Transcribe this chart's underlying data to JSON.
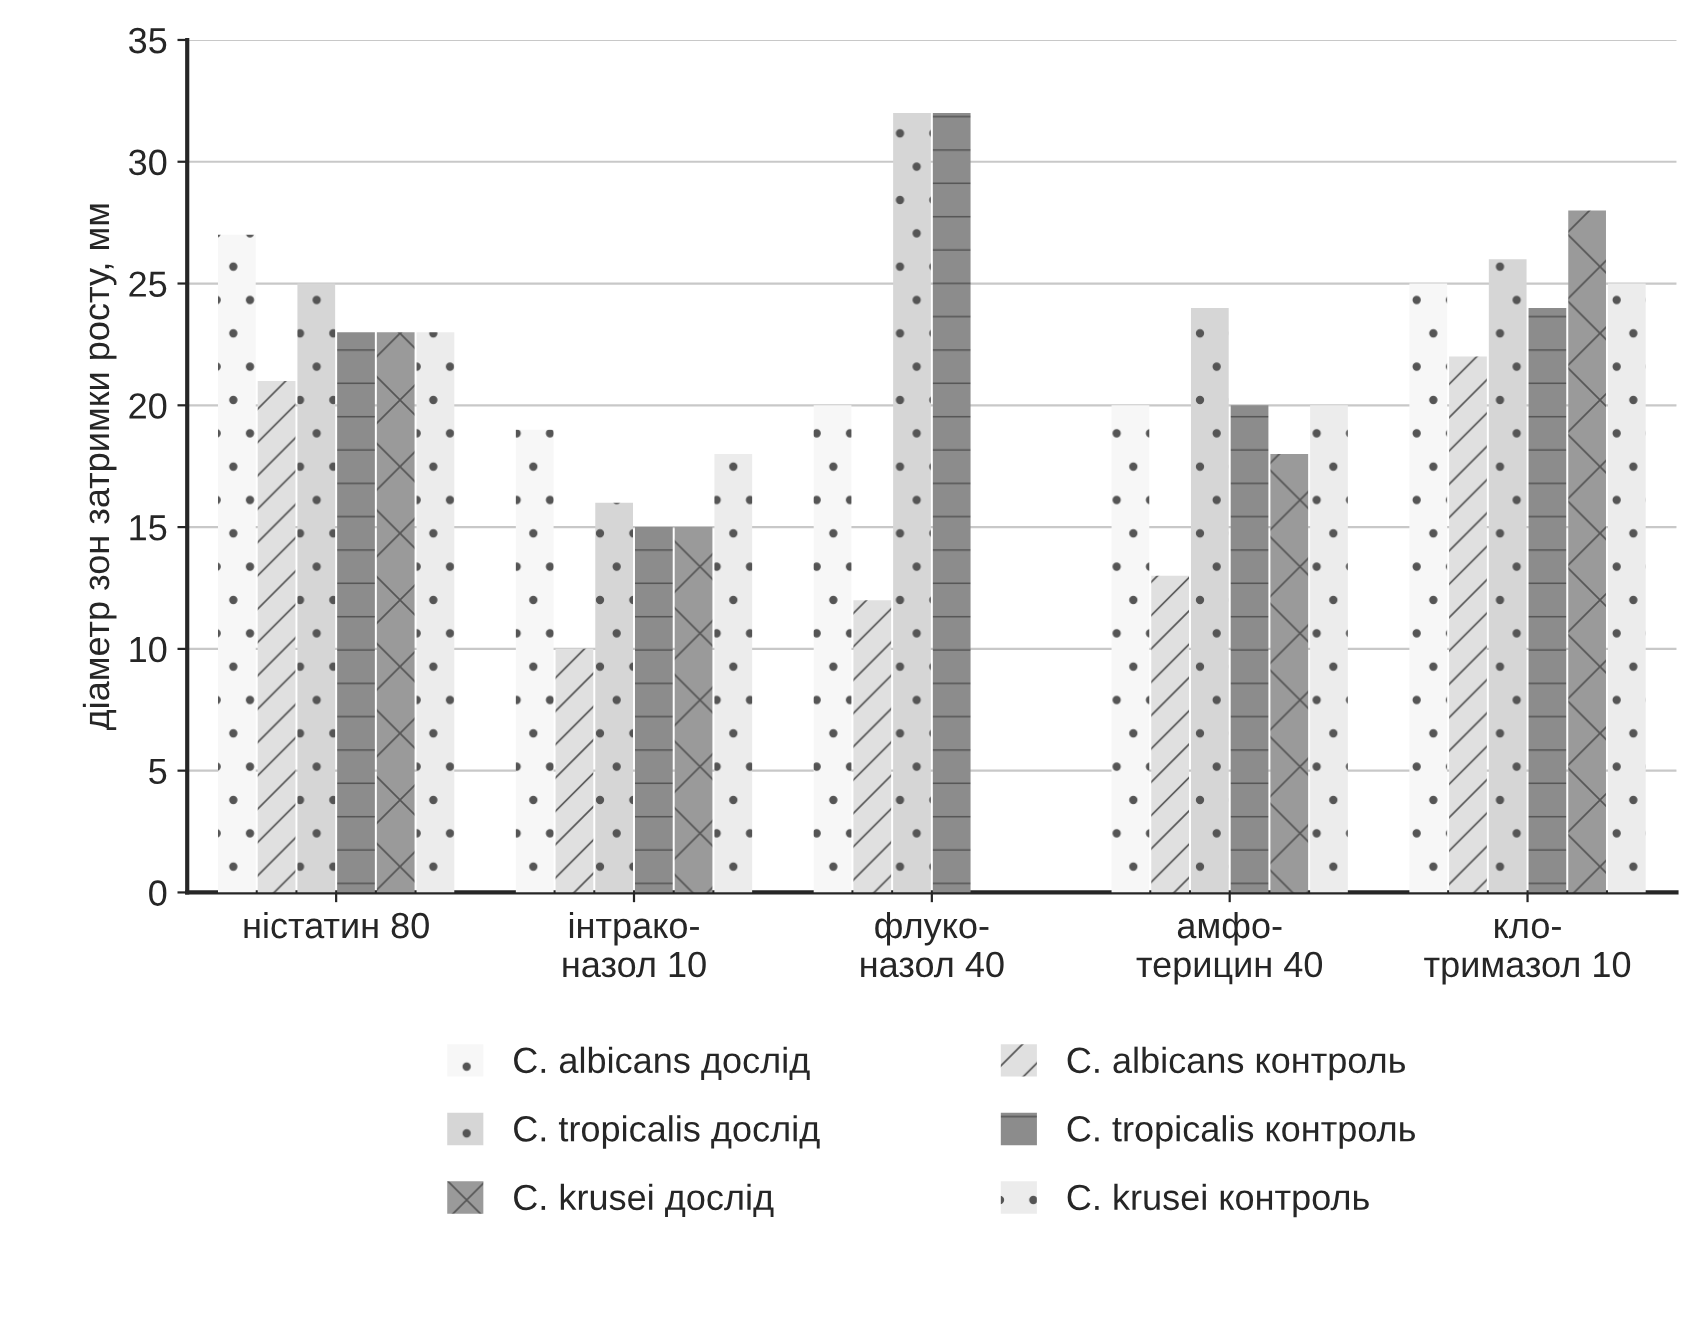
{
  "chart_data": {
    "type": "bar",
    "ylabel": "діаметр зон затримки росту, мм",
    "categories": [
      "ністатин 80",
      "інтрако-\nназол 10",
      "флуко-\nназол 40",
      "амфо-\nтерицин 40",
      "кло-\nтримазол 10"
    ],
    "series": [
      {
        "name": "C. albicans дослід",
        "color": "#f7f7f7",
        "values": [
          27,
          19,
          20,
          20,
          25
        ]
      },
      {
        "name": "C. albicans контроль",
        "color": "#e0e0e0",
        "values": [
          21,
          10,
          12,
          13,
          22
        ]
      },
      {
        "name": "C. tropicalis дослід",
        "color": "#d6d6d6",
        "values": [
          25,
          16,
          32,
          24,
          26
        ]
      },
      {
        "name": "C. tropicalis контроль",
        "color": "#8c8c8c",
        "values": [
          23,
          15,
          32,
          20,
          24
        ]
      },
      {
        "name": "C. krusei дослід",
        "color": "#9a9a9a",
        "values": [
          23,
          15,
          0,
          18,
          28
        ]
      },
      {
        "name": "C. krusei контроль",
        "color": "#ececec",
        "values": [
          23,
          18,
          0,
          20,
          25
        ]
      }
    ],
    "ylim": [
      0,
      35
    ],
    "yticks": [
      0,
      5,
      10,
      15,
      20,
      25,
      30,
      35
    ],
    "grid": "y",
    "legend": "bottom"
  }
}
